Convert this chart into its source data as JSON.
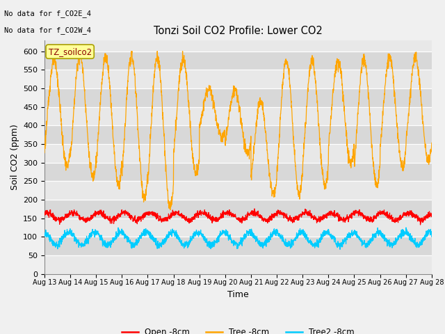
{
  "title": "Tonzi Soil CO2 Profile: Lower CO2",
  "xlabel": "Time",
  "ylabel": "Soil CO2 (ppm)",
  "ylim": [
    0,
    630
  ],
  "yticks": [
    0,
    50,
    100,
    150,
    200,
    250,
    300,
    350,
    400,
    450,
    500,
    550,
    600
  ],
  "note1": "No data for f_CO2E_4",
  "note2": "No data for f_CO2W_4",
  "file_label": "TZ_soilco2",
  "legend_entries": [
    "Open -8cm",
    "Tree -8cm",
    "Tree2 -8cm"
  ],
  "line_colors": [
    "#ff0000",
    "#ffa500",
    "#00ccff"
  ],
  "n_days": 15,
  "points_per_day": 144,
  "x_tick_labels": [
    "Aug 13",
    "Aug 14",
    "Aug 15",
    "Aug 16",
    "Aug 17",
    "Aug 18",
    "Aug 19",
    "Aug 20",
    "Aug 21",
    "Aug 22",
    "Aug 23",
    "Aug 24",
    "Aug 25",
    "Aug 26",
    "Aug 27",
    "Aug 28"
  ],
  "band_colors": [
    "#e8e8e8",
    "#d8d8d8"
  ],
  "fig_bg": "#f0f0f0"
}
